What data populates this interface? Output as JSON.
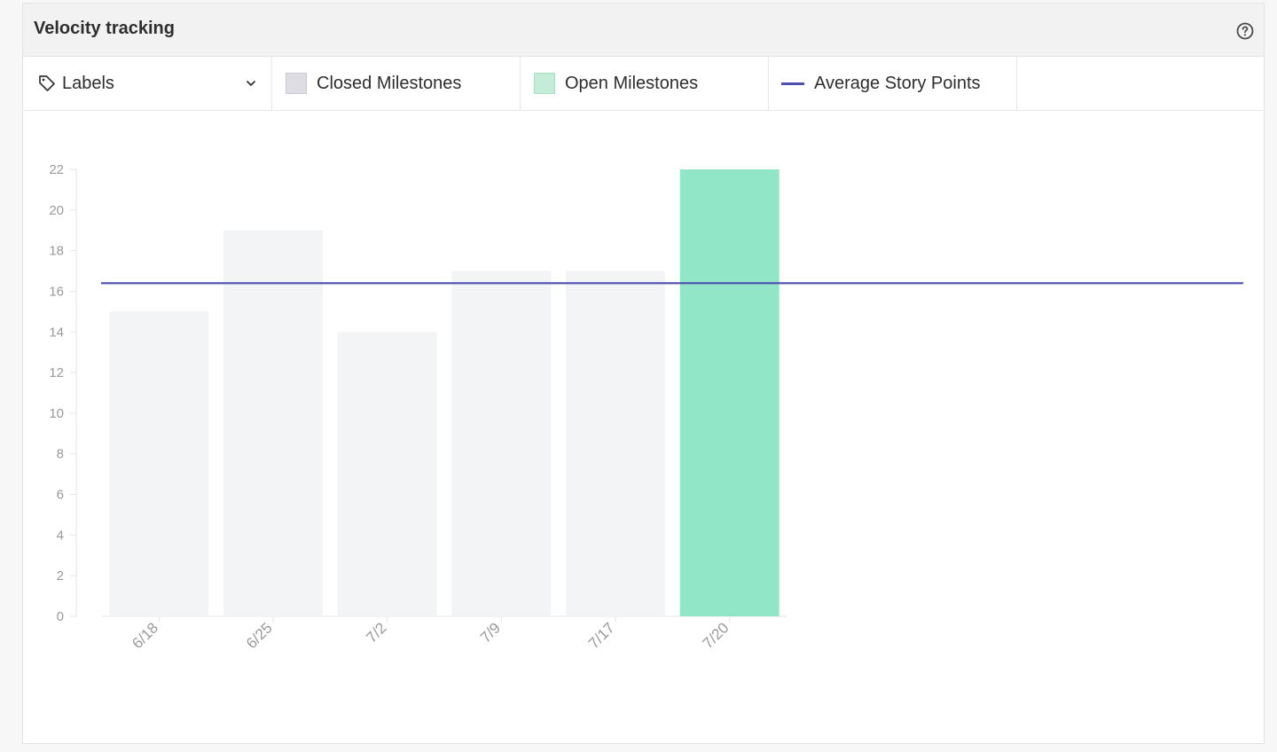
{
  "panel": {
    "title": "Velocity tracking",
    "help_icon": "help-circle-icon"
  },
  "toolbar": {
    "labels_button": "Labels",
    "tag_icon": "tag-icon",
    "chevron_icon": "chevron-down-icon",
    "legend": [
      {
        "label": "Closed Milestones",
        "kind": "swatch",
        "color": "#dddde3"
      },
      {
        "label": "Open Milestones",
        "kind": "swatch",
        "color": "#c3ecd9"
      },
      {
        "label": "Average Story Points",
        "kind": "line",
        "color": "#4e4fb0"
      }
    ]
  },
  "chart_data": {
    "type": "bar",
    "categories": [
      "6/18",
      "6/25",
      "7/2",
      "7/9",
      "7/17",
      "7/20"
    ],
    "series": [
      {
        "name": "Closed Milestones",
        "values": [
          15,
          19,
          14,
          17,
          17,
          null
        ],
        "color": "#f3f4f6"
      },
      {
        "name": "Open Milestones",
        "values": [
          null,
          null,
          null,
          null,
          null,
          22
        ],
        "color": "#92e6c8"
      }
    ],
    "average": {
      "name": "Average Story Points",
      "value": 16.4,
      "color": "#4e4fb0"
    },
    "yticks": [
      0,
      2,
      4,
      6,
      8,
      10,
      12,
      14,
      16,
      18,
      20,
      22
    ],
    "ylim": [
      0,
      22
    ],
    "title": "",
    "xlabel": "",
    "ylabel": "",
    "grid": false
  }
}
